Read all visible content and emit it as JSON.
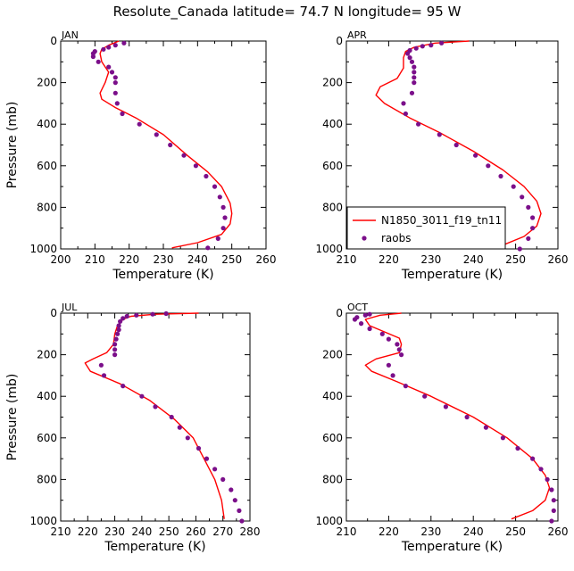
{
  "title": "Resolute_Canada  latitude= 74.7 N longitude= 95 W",
  "colors": {
    "model": "#ff0000",
    "obs": "#7b0f8a",
    "axis": "#000000"
  },
  "legend": {
    "model_label": "N1850_3011_f19_tn11",
    "obs_label": "raobs",
    "panel": "APR"
  },
  "chart_data": [
    {
      "type": "line",
      "panel": "JAN",
      "xlabel": "Temperature (K)",
      "ylabel": "Pressure (mb)",
      "xlim": [
        200,
        260
      ],
      "ylim": [
        1000,
        0
      ],
      "xticks": [
        200,
        210,
        220,
        230,
        240,
        250,
        260
      ],
      "yticks": [
        0,
        200,
        400,
        600,
        800,
        1000
      ],
      "series": [
        {
          "name": "N1850_3011_f19_tn11",
          "style": "line",
          "points": [
            [
              217,
              0
            ],
            [
              214,
              20
            ],
            [
              212,
              40
            ],
            [
              211.5,
              60
            ],
            [
              212,
              100
            ],
            [
              214,
              150
            ],
            [
              213,
              200
            ],
            [
              211.5,
              250
            ],
            [
              212,
              280
            ],
            [
              216,
              320
            ],
            [
              222,
              370
            ],
            [
              230,
              450
            ],
            [
              237,
              550
            ],
            [
              243,
              630
            ],
            [
              247,
              700
            ],
            [
              249.5,
              780
            ],
            [
              250,
              830
            ],
            [
              249.5,
              880
            ],
            [
              247,
              930
            ],
            [
              240,
              970
            ],
            [
              232.5,
              995
            ]
          ]
        },
        {
          "name": "raobs",
          "style": "markers",
          "points": [
            [
              218.5,
              10
            ],
            [
              216,
              20
            ],
            [
              214,
              30
            ],
            [
              212.5,
              40
            ],
            [
              210,
              50
            ],
            [
              209.5,
              60
            ],
            [
              209.5,
              75
            ],
            [
              211,
              100
            ],
            [
              214,
              125
            ],
            [
              215,
              150
            ],
            [
              216,
              175
            ],
            [
              216,
              200
            ],
            [
              216,
              250
            ],
            [
              216.5,
              300
            ],
            [
              218,
              350
            ],
            [
              223,
              400
            ],
            [
              228,
              450
            ],
            [
              232,
              500
            ],
            [
              236,
              550
            ],
            [
              239.5,
              600
            ],
            [
              242.5,
              650
            ],
            [
              245,
              700
            ],
            [
              246.5,
              750
            ],
            [
              247.5,
              800
            ],
            [
              248,
              850
            ],
            [
              247.5,
              900
            ],
            [
              246,
              950
            ],
            [
              243,
              995
            ]
          ]
        }
      ]
    },
    {
      "type": "line",
      "panel": "APR",
      "xlabel": "Temperature (K)",
      "ylabel": "",
      "xlim": [
        210,
        260
      ],
      "ylim": [
        1000,
        0
      ],
      "xticks": [
        210,
        220,
        230,
        240,
        250,
        260
      ],
      "yticks": [
        0,
        200,
        400,
        600,
        800,
        1000
      ],
      "series": [
        {
          "name": "N1850_3011_f19_tn11",
          "style": "line",
          "points": [
            [
              239,
              0
            ],
            [
              231,
              10
            ],
            [
              226,
              30
            ],
            [
              224,
              50
            ],
            [
              223.5,
              80
            ],
            [
              223.5,
              130
            ],
            [
              222,
              180
            ],
            [
              218,
              220
            ],
            [
              217,
              260
            ],
            [
              219,
              300
            ],
            [
              225,
              370
            ],
            [
              232,
              440
            ],
            [
              240,
              530
            ],
            [
              247,
              620
            ],
            [
              252,
              700
            ],
            [
              255,
              770
            ],
            [
              256,
              830
            ],
            [
              255,
              890
            ],
            [
              252,
              940
            ],
            [
              246,
              990
            ]
          ]
        },
        {
          "name": "raobs",
          "style": "markers",
          "points": [
            [
              232.5,
              10
            ],
            [
              230,
              20
            ],
            [
              228,
              25
            ],
            [
              226.5,
              35
            ],
            [
              225,
              45
            ],
            [
              224.5,
              60
            ],
            [
              225,
              80
            ],
            [
              225.5,
              100
            ],
            [
              226,
              125
            ],
            [
              226,
              150
            ],
            [
              226,
              175
            ],
            [
              226,
              200
            ],
            [
              225.5,
              250
            ],
            [
              223.5,
              300
            ],
            [
              224,
              350
            ],
            [
              227,
              400
            ],
            [
              232,
              450
            ],
            [
              236,
              500
            ],
            [
              240.5,
              550
            ],
            [
              243.5,
              600
            ],
            [
              246.5,
              650
            ],
            [
              249.5,
              700
            ],
            [
              251.5,
              750
            ],
            [
              253,
              800
            ],
            [
              254,
              850
            ],
            [
              254,
              900
            ],
            [
              253,
              950
            ],
            [
              251,
              1000
            ]
          ]
        }
      ]
    },
    {
      "type": "line",
      "panel": "JUL",
      "xlabel": "Temperature (K)",
      "ylabel": "Pressure (mb)",
      "xlim": [
        210,
        280
      ],
      "ylim": [
        1000,
        0
      ],
      "xticks": [
        210,
        220,
        230,
        240,
        250,
        260,
        270,
        280
      ],
      "yticks": [
        0,
        200,
        400,
        600,
        800,
        1000
      ],
      "series": [
        {
          "name": "N1850_3011_f19_tn11",
          "style": "line",
          "points": [
            [
              261,
              0
            ],
            [
              245,
              5
            ],
            [
              236,
              15
            ],
            [
              233,
              30
            ],
            [
              231,
              60
            ],
            [
              230,
              100
            ],
            [
              229.5,
              150
            ],
            [
              227,
              190
            ],
            [
              222,
              220
            ],
            [
              219,
              240
            ],
            [
              221,
              280
            ],
            [
              232,
              340
            ],
            [
              243,
              420
            ],
            [
              252,
              510
            ],
            [
              259,
              600
            ],
            [
              263,
              700
            ],
            [
              267,
              800
            ],
            [
              269.5,
              900
            ],
            [
              270.5,
              990
            ]
          ]
        },
        {
          "name": "raobs",
          "style": "markers",
          "points": [
            [
              249,
              2
            ],
            [
              244,
              5
            ],
            [
              238,
              10
            ],
            [
              234.5,
              15
            ],
            [
              233,
              25
            ],
            [
              232,
              40
            ],
            [
              231.5,
              60
            ],
            [
              231.5,
              80
            ],
            [
              231,
              100
            ],
            [
              230.5,
              125
            ],
            [
              230,
              150
            ],
            [
              230,
              175
            ],
            [
              230,
              200
            ],
            [
              225,
              250
            ],
            [
              226,
              300
            ],
            [
              233,
              350
            ],
            [
              240,
              400
            ],
            [
              245,
              450
            ],
            [
              251,
              500
            ],
            [
              254,
              550
            ],
            [
              257,
              600
            ],
            [
              261,
              650
            ],
            [
              264,
              700
            ],
            [
              267,
              750
            ],
            [
              270,
              800
            ],
            [
              273,
              850
            ],
            [
              274.5,
              900
            ],
            [
              276,
              950
            ],
            [
              277,
              1000
            ]
          ]
        }
      ]
    },
    {
      "type": "line",
      "panel": "OCT",
      "xlabel": "Temperature (K)",
      "ylabel": "",
      "xlim": [
        210,
        260
      ],
      "ylim": [
        1000,
        0
      ],
      "xticks": [
        210,
        220,
        230,
        240,
        250,
        260
      ],
      "yticks": [
        0,
        200,
        400,
        600,
        800,
        1000
      ],
      "series": [
        {
          "name": "N1850_3011_f19_tn11",
          "style": "line",
          "points": [
            [
              223,
              0
            ],
            [
              218,
              10
            ],
            [
              214.5,
              30
            ],
            [
              215.5,
              60
            ],
            [
              219,
              90
            ],
            [
              222.5,
              120
            ],
            [
              223,
              150
            ],
            [
              222.5,
              190
            ],
            [
              217,
              220
            ],
            [
              214.5,
              250
            ],
            [
              216,
              280
            ],
            [
              222,
              330
            ],
            [
              230,
              400
            ],
            [
              240,
              500
            ],
            [
              248,
              600
            ],
            [
              254,
              700
            ],
            [
              257,
              780
            ],
            [
              258,
              840
            ],
            [
              257,
              900
            ],
            [
              254,
              950
            ],
            [
              249,
              990
            ]
          ]
        },
        {
          "name": "raobs",
          "style": "markers",
          "points": [
            [
              215.5,
              5
            ],
            [
              214.5,
              10
            ],
            [
              212.5,
              20
            ],
            [
              212,
              30
            ],
            [
              213.5,
              50
            ],
            [
              215.5,
              75
            ],
            [
              218.5,
              100
            ],
            [
              220,
              125
            ],
            [
              222,
              150
            ],
            [
              222.5,
              175
            ],
            [
              223,
              200
            ],
            [
              220,
              250
            ],
            [
              221,
              300
            ],
            [
              224,
              350
            ],
            [
              228.5,
              400
            ],
            [
              233.5,
              450
            ],
            [
              238.5,
              500
            ],
            [
              243,
              550
            ],
            [
              247,
              600
            ],
            [
              250.5,
              650
            ],
            [
              254,
              700
            ],
            [
              256,
              750
            ],
            [
              257.5,
              800
            ],
            [
              258.5,
              850
            ],
            [
              259,
              900
            ],
            [
              259,
              950
            ],
            [
              258.5,
              1000
            ]
          ]
        }
      ]
    }
  ]
}
